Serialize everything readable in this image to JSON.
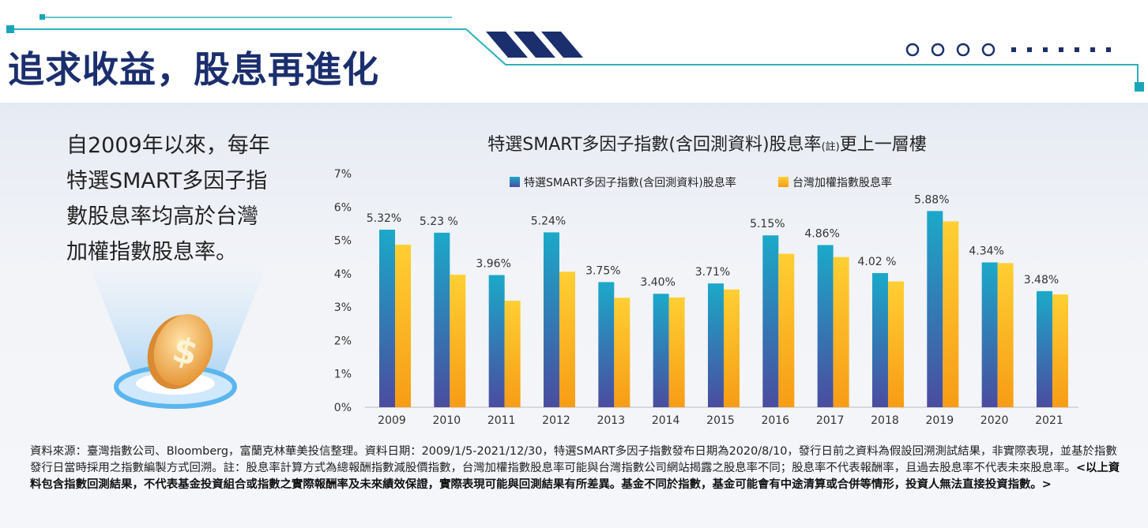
{
  "header": {
    "title": "追求收益，股息再進化"
  },
  "intro": {
    "lines": [
      "自2009年以來，每年",
      "特選SMART多因子指",
      "數股息率均高於台灣",
      "加權指數股息率。"
    ]
  },
  "chart_data": {
    "type": "bar",
    "title": "特選SMART多因子指數(含回測資料)股息率",
    "title_note": "(註)",
    "title_suffix": "更上一層樓",
    "categories": [
      "2009",
      "2010",
      "2011",
      "2012",
      "2013",
      "2014",
      "2015",
      "2016",
      "2017",
      "2018",
      "2019",
      "2020",
      "2021"
    ],
    "series": [
      {
        "name": "特選SMART多因子指數(含回測資料)股息率",
        "color": "#1ba9c9",
        "values": [
          5.32,
          5.23,
          3.96,
          5.24,
          3.75,
          3.4,
          3.71,
          5.15,
          4.86,
          4.02,
          5.88,
          4.34,
          3.48
        ],
        "value_labels": [
          "5.32%",
          "5.23 %",
          "3.96%",
          "5.24%",
          "3.75%",
          "3.40%",
          "3.71%",
          "5.15%",
          "4.86%",
          "4.02 %",
          "5.88%",
          "4.34%",
          "3.48%"
        ]
      },
      {
        "name": "台灣加權指數股息率",
        "color": "#ffcf33",
        "values": [
          4.87,
          3.97,
          3.19,
          4.06,
          3.28,
          3.29,
          3.53,
          4.6,
          4.5,
          3.77,
          5.57,
          4.32,
          3.38
        ]
      }
    ],
    "ylim": [
      0,
      7
    ],
    "yticks": [
      {
        "value": 0,
        "label": "0%"
      },
      {
        "value": 1,
        "label": "1%"
      },
      {
        "value": 2,
        "label": "2%"
      },
      {
        "value": 3,
        "label": "3%"
      },
      {
        "value": 4,
        "label": "4%"
      },
      {
        "value": 5,
        "label": "5%"
      },
      {
        "value": 6,
        "label": "6%"
      },
      {
        "value": 7,
        "label": "7%"
      }
    ],
    "grid": false,
    "legend": "top"
  },
  "footnote": {
    "source": "資料來源：臺灣指數公司、Bloomberg，富蘭克林華美投信整理。資料日期：2009/1/5-2021/12/30，特選SMART多因子指數發布日期為2020/8/10，發行日前之資料為假設回溯測試結果，非實際表現，並基於指數發行日當時採用之指數編製方式回溯。註：股息率計算方式為總報酬指數減股價指數，台灣加權指數股息率可能與台灣指數公司網站揭露之股息率不同；股息率不代表報酬率，且過去股息率不代表未來股息率。",
    "disclaimer": "<以上資料包含指數回測結果，不代表基金投資組合或指數之實際報酬率及未來績效保證，實際表現可能與回測結果有所差異。基金不同於指數，基金可能會有中途清算或合併等情形，投資人無法直接投資指數。>"
  }
}
